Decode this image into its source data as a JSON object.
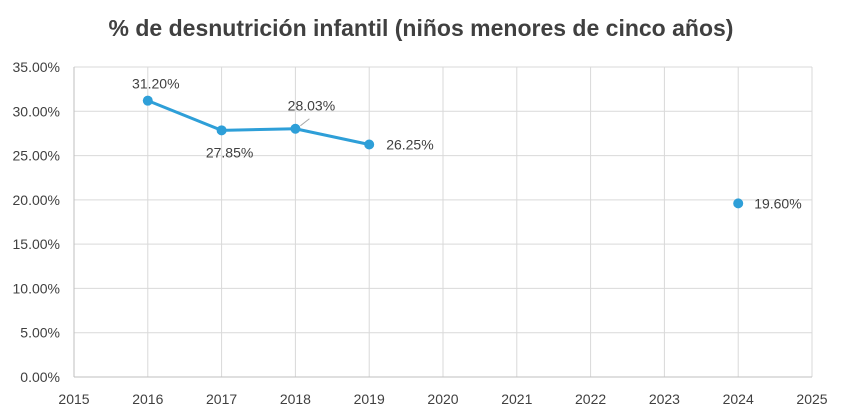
{
  "chart_data": {
    "type": "scatter",
    "title": "% de desnutrición infantil (niños menores de cinco años)",
    "xlabel": "",
    "ylabel": "",
    "xlim": [
      2015,
      2025
    ],
    "ylim": [
      0,
      35
    ],
    "x_ticks": [
      "2015",
      "2016",
      "2017",
      "2018",
      "2019",
      "2020",
      "2021",
      "2022",
      "2023",
      "2024",
      "2025"
    ],
    "y_ticks": [
      "0.00%",
      "5.00%",
      "10.00%",
      "15.00%",
      "20.00%",
      "25.00%",
      "30.00%",
      "35.00%"
    ],
    "grid": true,
    "legend": "none",
    "series_color": "#2e9fd8",
    "series": [
      {
        "name": "% de desnutrición infantil",
        "points": [
          {
            "x": 2016,
            "y": 31.2,
            "label": "31.20%",
            "connected": true
          },
          {
            "x": 2017,
            "y": 27.85,
            "label": "27.85%",
            "connected": true
          },
          {
            "x": 2018,
            "y": 28.03,
            "label": "28.03%",
            "connected": true
          },
          {
            "x": 2019,
            "y": 26.25,
            "label": "26.25%",
            "connected": true
          },
          {
            "x": 2024,
            "y": 19.6,
            "label": "19.60%",
            "connected": false
          }
        ]
      }
    ]
  }
}
